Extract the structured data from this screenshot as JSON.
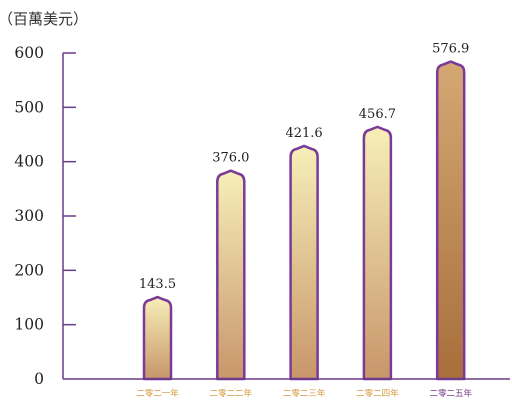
{
  "chart_data": {
    "type": "bar",
    "unit_label": "（百萬美元）",
    "categories": [
      "二零二一年",
      "二零二二年",
      "二零二三年",
      "二零二四年",
      "二零二五年"
    ],
    "values": [
      143.5,
      376.0,
      421.6,
      456.7,
      576.9
    ],
    "value_labels": [
      "143.5",
      "376.0",
      "421.6",
      "456.7",
      "576.9"
    ],
    "yticks": [
      "0",
      "100",
      "200",
      "300",
      "400",
      "500",
      "600"
    ],
    "ylim": [
      0,
      600
    ],
    "colors": {
      "axis": "#6a3a8a",
      "bar_outline": "#7b3a98",
      "bar_top": "#f7efb8",
      "bar_bottom": "#c8966a",
      "last_bar_top": "#d4a874",
      "last_bar_bottom": "#a86e3c",
      "category_label": "#d39a3d",
      "last_category_label": "#7b3a8b"
    }
  }
}
